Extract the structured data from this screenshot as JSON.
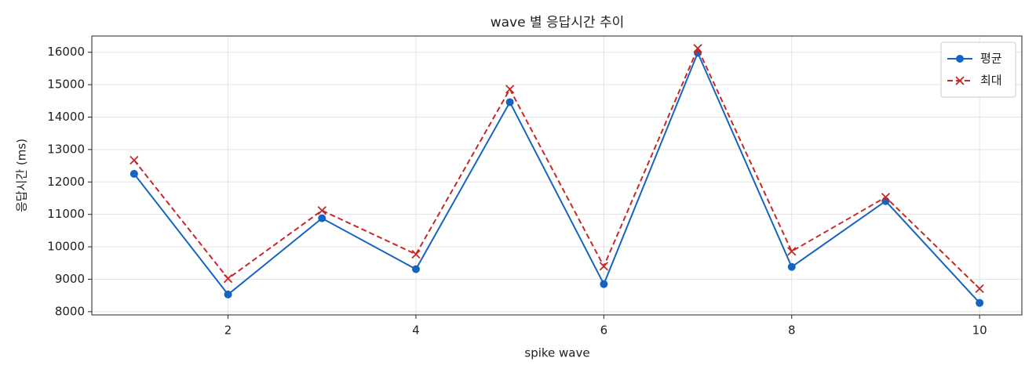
{
  "chart_data": {
    "type": "line",
    "title": "wave 별 응답시간 추이",
    "x_label": "spike wave",
    "y_label": "응답시간 (ms)",
    "x": [
      1,
      2,
      3,
      4,
      5,
      6,
      7,
      8,
      9,
      10
    ],
    "series": [
      {
        "name": "평균",
        "color": "#1565c0",
        "marker": "circle",
        "dash": "solid",
        "values": [
          12250,
          8530,
          10880,
          9310,
          14460,
          8850,
          15980,
          9380,
          11410,
          8270
        ]
      },
      {
        "name": "최대",
        "color": "#c62828",
        "marker": "x",
        "dash": "dashed",
        "values": [
          12670,
          9020,
          11120,
          9770,
          14860,
          9400,
          16120,
          9860,
          11530,
          8710
        ]
      }
    ],
    "xlim": [
      0.55,
      10.45
    ],
    "xticks": [
      2,
      4,
      6,
      8,
      10
    ],
    "ylim": [
      7900,
      16500
    ],
    "yticks": [
      8000,
      9000,
      10000,
      11000,
      12000,
      13000,
      14000,
      15000,
      16000
    ],
    "grid": true,
    "legend": "upper right"
  }
}
